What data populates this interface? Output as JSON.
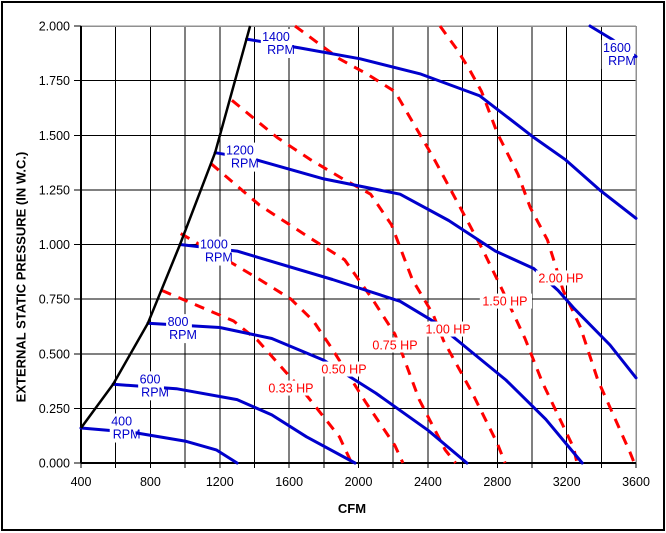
{
  "chart_data": {
    "type": "line",
    "title": "",
    "xlabel": "CFM",
    "ylabel": "EXTERNAL STATIC PRESSURE (IN W.C.)",
    "xlim": [
      400,
      3600
    ],
    "ylim": [
      0,
      2
    ],
    "x_grid_step": 200,
    "y_grid_step": 0.25,
    "x_ticks": [
      400,
      800,
      1200,
      1600,
      2000,
      2400,
      2800,
      3200,
      3600
    ],
    "x_tick_labels": [
      "400",
      "800",
      "1200",
      "1600",
      "2000",
      "2400",
      "2800",
      "3200",
      "3600"
    ],
    "y_ticks": [
      2.0,
      1.75,
      1.5,
      1.25,
      1.0,
      0.75,
      0.5,
      0.25,
      0.0
    ],
    "y_tick_labels": [
      "2.000",
      "1.750",
      "1.500",
      "1.250",
      "1.000",
      "0.750",
      "0.500",
      "0.250",
      "0.000"
    ],
    "grid": true,
    "legend": "labels drawn on curves",
    "colors": {
      "rpm_curves": "#0000CC",
      "hp_curves": "#FF0000",
      "surge_line": "#000000",
      "grid": "#000000",
      "border_gray": "#909090"
    },
    "surge_line": {
      "name": "surge-line",
      "points": [
        [
          400,
          0.16
        ],
        [
          585,
          0.36
        ],
        [
          786,
          0.64
        ],
        [
          971,
          1.0
        ],
        [
          1173,
          1.42
        ],
        [
          1354,
          1.94
        ],
        [
          1375,
          2.0
        ]
      ]
    },
    "rpm_series": [
      {
        "name": "400 RPM",
        "label_lines": [
          "400",
          "RPM"
        ],
        "label_at": [
          640,
          0.16
        ],
        "points": [
          [
            400,
            0.16
          ],
          [
            700,
            0.14
          ],
          [
            1000,
            0.1
          ],
          [
            1180,
            0.06
          ],
          [
            1300,
            0
          ]
        ]
      },
      {
        "name": "600 RPM",
        "label_lines": [
          "600",
          "RPM"
        ],
        "label_at": [
          804,
          0.353
        ],
        "points": [
          [
            585,
            0.36
          ],
          [
            950,
            0.34
          ],
          [
            1300,
            0.29
          ],
          [
            1500,
            0.22
          ],
          [
            1700,
            0.12
          ],
          [
            1980,
            0
          ]
        ]
      },
      {
        "name": "800 RPM",
        "label_lines": [
          "800",
          "RPM"
        ],
        "label_at": [
          965,
          0.615
        ],
        "points": [
          [
            786,
            0.64
          ],
          [
            1200,
            0.62
          ],
          [
            1500,
            0.57
          ],
          [
            1800,
            0.47
          ],
          [
            2100,
            0.32
          ],
          [
            2400,
            0.15
          ],
          [
            2625,
            0
          ]
        ]
      },
      {
        "name": "1000 RPM",
        "label_lines": [
          "1000",
          "RPM"
        ],
        "label_at": [
          1172,
          0.97
        ],
        "points": [
          [
            971,
            1.0
          ],
          [
            1300,
            0.97
          ],
          [
            1850,
            0.84
          ],
          [
            2240,
            0.74
          ],
          [
            2450,
            0.64
          ],
          [
            2650,
            0.51
          ],
          [
            2850,
            0.38
          ],
          [
            3080,
            0.2
          ],
          [
            3290,
            0
          ]
        ]
      },
      {
        "name": "1200 RPM",
        "label_lines": [
          "1200",
          "RPM"
        ],
        "label_at": [
          1322,
          1.4
        ],
        "points": [
          [
            1173,
            1.42
          ],
          [
            1400,
            1.39
          ],
          [
            1800,
            1.3
          ],
          [
            2240,
            1.23
          ],
          [
            2520,
            1.11
          ],
          [
            2790,
            0.97
          ],
          [
            3010,
            0.89
          ],
          [
            3150,
            0.79
          ],
          [
            3240,
            0.71
          ],
          [
            3450,
            0.54
          ],
          [
            3600,
            0.39
          ]
        ]
      },
      {
        "name": "1400 RPM",
        "label_lines": [
          "1400",
          "RPM"
        ],
        "label_at": [
          1530,
          1.92
        ],
        "points": [
          [
            1354,
            1.94
          ],
          [
            1660,
            1.9
          ],
          [
            2010,
            1.85
          ],
          [
            2360,
            1.78
          ],
          [
            2700,
            1.68
          ],
          [
            3010,
            1.49
          ],
          [
            3190,
            1.39
          ],
          [
            3390,
            1.25
          ],
          [
            3600,
            1.12
          ]
        ]
      },
      {
        "name": "1600 RPM",
        "label_lines": [
          "1600",
          "RPM"
        ],
        "label_at": [
          3496,
          1.87
        ],
        "points": [
          [
            3335,
            2.0
          ],
          [
            3460,
            1.94
          ],
          [
            3600,
            1.86
          ]
        ]
      }
    ],
    "hp_series": [
      {
        "name": "0.33 HP",
        "label_lines": [
          "0.33 HP"
        ],
        "label_at": [
          1616,
          0.343
        ],
        "points": [
          [
            866,
            0.79
          ],
          [
            1280,
            0.65
          ],
          [
            1420,
            0.56
          ],
          [
            1520,
            0.47
          ],
          [
            1700,
            0.31
          ],
          [
            1790,
            0.22
          ],
          [
            1890,
            0.12
          ],
          [
            1960,
            0
          ]
        ]
      },
      {
        "name": "0.50 HP",
        "label_lines": [
          "0.50 HP"
        ],
        "label_at": [
          1922,
          0.43
        ],
        "points": [
          [
            975,
            1.05
          ],
          [
            1260,
            0.92
          ],
          [
            1430,
            0.84
          ],
          [
            1610,
            0.75
          ],
          [
            1740,
            0.65
          ],
          [
            1850,
            0.52
          ],
          [
            2040,
            0.28
          ],
          [
            2210,
            0.08
          ],
          [
            2256,
            0
          ]
        ]
      },
      {
        "name": "0.75 HP",
        "label_lines": [
          "0.75 HP"
        ],
        "label_at": [
          2216,
          0.54
        ],
        "points": [
          [
            1150,
            1.37
          ],
          [
            1430,
            1.18
          ],
          [
            1720,
            1.03
          ],
          [
            1920,
            0.93
          ],
          [
            2080,
            0.75
          ],
          [
            2210,
            0.59
          ],
          [
            2350,
            0.29
          ],
          [
            2500,
            0.06
          ],
          [
            2560,
            0
          ]
        ]
      },
      {
        "name": "1.00 HP",
        "label_lines": [
          "1.00 HP"
        ],
        "label_at": [
          2522,
          0.613
        ],
        "points": [
          [
            1270,
            1.66
          ],
          [
            1530,
            1.49
          ],
          [
            1720,
            1.39
          ],
          [
            1910,
            1.3
          ],
          [
            2070,
            1.23
          ],
          [
            2190,
            1.09
          ],
          [
            2310,
            0.84
          ],
          [
            2430,
            0.68
          ],
          [
            2490,
            0.56
          ],
          [
            2650,
            0.33
          ],
          [
            2800,
            0.09
          ],
          [
            2845,
            0
          ]
        ]
      },
      {
        "name": "1.50 HP",
        "label_lines": [
          "1.50 HP"
        ],
        "label_at": [
          2850,
          0.741
        ],
        "points": [
          [
            1634,
            2.0
          ],
          [
            1770,
            1.92
          ],
          [
            1890,
            1.85
          ],
          [
            2050,
            1.78
          ],
          [
            2210,
            1.7
          ],
          [
            2430,
            1.4
          ],
          [
            2640,
            1.09
          ],
          [
            2720,
            0.97
          ],
          [
            2830,
            0.79
          ],
          [
            2960,
            0.57
          ],
          [
            3060,
            0.37
          ],
          [
            3240,
            0.07
          ],
          [
            3260,
            0
          ]
        ]
      },
      {
        "name": "2.00 HP",
        "label_lines": [
          "2.00 HP"
        ],
        "label_at": [
          3173,
          0.847
        ],
        "points": [
          [
            2470,
            2.0
          ],
          [
            2570,
            1.89
          ],
          [
            2640,
            1.8
          ],
          [
            2710,
            1.7
          ],
          [
            2800,
            1.51
          ],
          [
            2920,
            1.32
          ],
          [
            2990,
            1.17
          ],
          [
            3090,
            1.02
          ],
          [
            3180,
            0.79
          ],
          [
            3280,
            0.62
          ],
          [
            3380,
            0.38
          ],
          [
            3565,
            0.05
          ],
          [
            3590,
            0
          ]
        ]
      }
    ]
  }
}
